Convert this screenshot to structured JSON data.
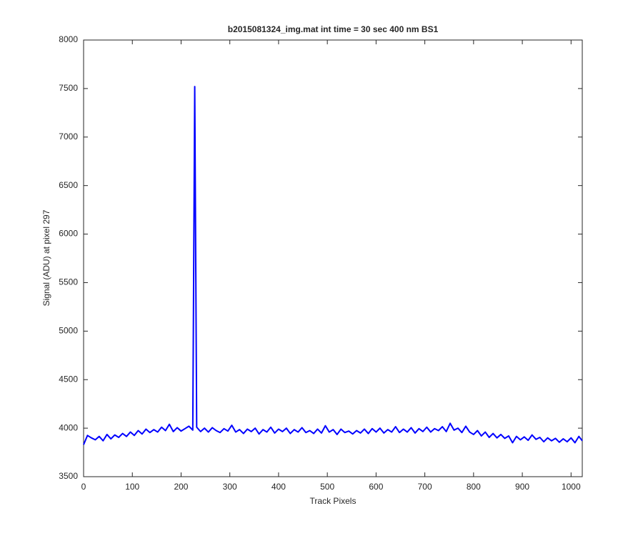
{
  "chart_data": {
    "type": "line",
    "title": "b2015081324_img.mat int time = 30 sec  400 nm BS1",
    "xlabel": "Track Pixels",
    "ylabel": "Signal (ADU) at pixel 297",
    "x": [
      0,
      8,
      16,
      24,
      32,
      40,
      48,
      56,
      64,
      72,
      80,
      88,
      96,
      104,
      112,
      120,
      128,
      136,
      144,
      152,
      160,
      168,
      176,
      184,
      192,
      200,
      208,
      216,
      224,
      228,
      232,
      240,
      248,
      256,
      264,
      272,
      280,
      288,
      296,
      304,
      312,
      320,
      328,
      336,
      344,
      352,
      360,
      368,
      376,
      384,
      392,
      400,
      408,
      416,
      424,
      432,
      440,
      448,
      456,
      464,
      472,
      480,
      488,
      496,
      504,
      512,
      520,
      528,
      536,
      544,
      552,
      560,
      568,
      576,
      584,
      592,
      600,
      608,
      616,
      624,
      632,
      640,
      648,
      656,
      664,
      672,
      680,
      688,
      696,
      704,
      712,
      720,
      728,
      736,
      744,
      752,
      760,
      768,
      776,
      784,
      792,
      800,
      808,
      816,
      824,
      832,
      840,
      848,
      856,
      864,
      872,
      880,
      888,
      896,
      904,
      912,
      920,
      928,
      936,
      944,
      952,
      960,
      968,
      976,
      984,
      992,
      1000,
      1008,
      1016,
      1023
    ],
    "series": [
      {
        "color": "#0000ff",
        "values": [
          3830,
          3925,
          3900,
          3880,
          3915,
          3870,
          3935,
          3890,
          3930,
          3905,
          3945,
          3915,
          3960,
          3925,
          3975,
          3940,
          3990,
          3955,
          3985,
          3960,
          4010,
          3975,
          4040,
          3965,
          4005,
          3970,
          3995,
          4020,
          3980,
          7520,
          4010,
          3965,
          4000,
          3960,
          4005,
          3975,
          3955,
          3995,
          3970,
          4030,
          3960,
          3985,
          3945,
          3990,
          3965,
          4000,
          3940,
          3985,
          3960,
          4010,
          3950,
          3990,
          3965,
          4000,
          3945,
          3985,
          3960,
          4005,
          3955,
          3975,
          3945,
          3990,
          3950,
          4025,
          3960,
          3985,
          3935,
          3990,
          3955,
          3970,
          3940,
          3975,
          3950,
          3990,
          3945,
          3995,
          3960,
          4000,
          3950,
          3985,
          3960,
          4015,
          3955,
          3990,
          3960,
          4005,
          3950,
          3995,
          3965,
          4010,
          3960,
          3995,
          3975,
          4015,
          3965,
          4050,
          3980,
          4000,
          3955,
          4020,
          3960,
          3935,
          3975,
          3920,
          3960,
          3905,
          3945,
          3900,
          3935,
          3895,
          3920,
          3850,
          3915,
          3880,
          3910,
          3875,
          3930,
          3885,
          3905,
          3860,
          3900,
          3870,
          3895,
          3855,
          3890,
          3860,
          3900,
          3850,
          3915,
          3870
        ]
      }
    ],
    "xlim": [
      0,
      1023
    ],
    "ylim": [
      3500,
      8000
    ],
    "xticks": [
      0,
      100,
      200,
      300,
      400,
      500,
      600,
      700,
      800,
      900,
      1000
    ],
    "yticks": [
      3500,
      4000,
      4500,
      5000,
      5500,
      6000,
      6500,
      7000,
      7500,
      8000
    ]
  }
}
